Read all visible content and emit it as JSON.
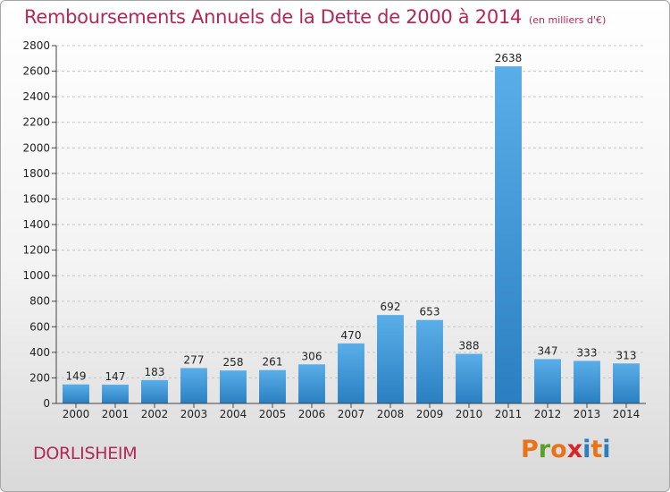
{
  "header": {
    "title": "Remboursements Annuels de la Dette de 2000 à 2014",
    "subtitle": "(en milliers d'€)"
  },
  "footer": {
    "commune": "DORLISHEIM",
    "logo_text": "Proxiti",
    "logo_colors": [
      "#e8731a",
      "#5aa02c",
      "#e8731a",
      "#d7262b",
      "#2a7fc1",
      "#e8731a",
      "#2a7fc1"
    ]
  },
  "chart_data": {
    "type": "bar",
    "title": "Remboursements Annuels de la Dette de 2000 à 2014",
    "subtitle": "(en milliers d'€)",
    "xlabel": "",
    "ylabel": "",
    "categories": [
      "2000",
      "2001",
      "2002",
      "2003",
      "2004",
      "2005",
      "2006",
      "2007",
      "2008",
      "2009",
      "2010",
      "2011",
      "2012",
      "2013",
      "2014"
    ],
    "values": [
      149,
      147,
      183,
      277,
      258,
      261,
      306,
      470,
      692,
      653,
      388,
      2638,
      347,
      333,
      313
    ],
    "ylim": [
      0,
      2800
    ],
    "yticks": [
      0,
      200,
      400,
      600,
      800,
      1000,
      1200,
      1400,
      1600,
      1800,
      2000,
      2200,
      2400,
      2600,
      2800
    ],
    "grid": true,
    "bar_color_top": "#5aaee8",
    "bar_color_bottom": "#2a7fc1"
  }
}
